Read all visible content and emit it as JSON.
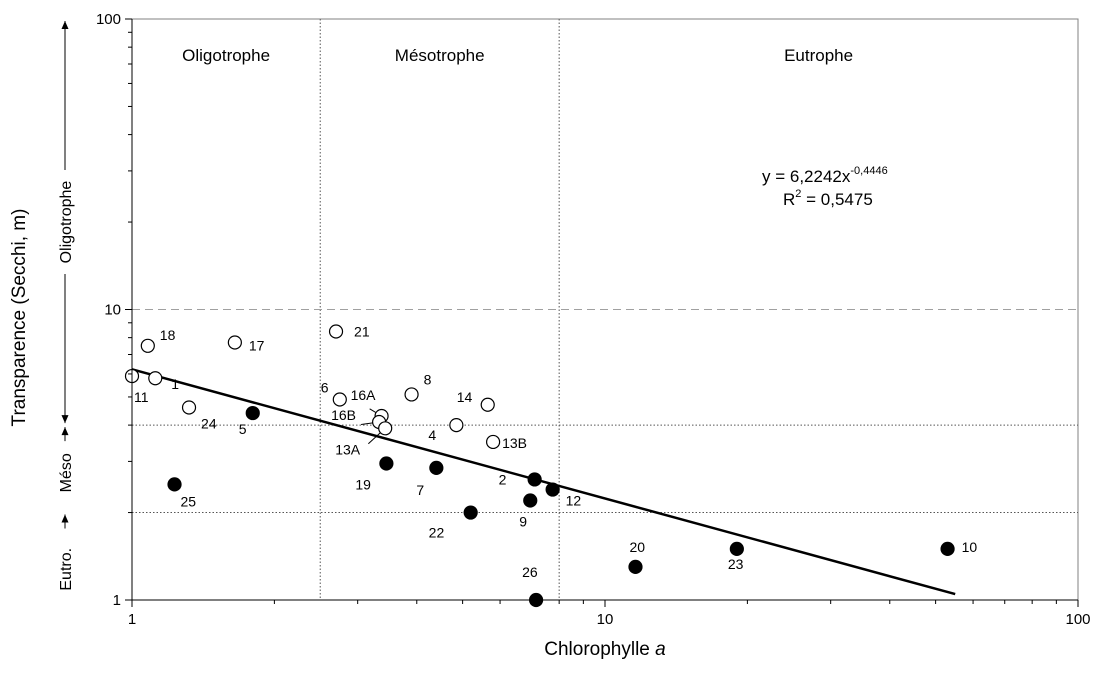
{
  "chart_data": {
    "type": "scatter",
    "x_scale": "log",
    "y_scale": "log",
    "xlim": [
      1,
      100
    ],
    "ylim": [
      1,
      100
    ],
    "xlabel": "Chlorophylle",
    "xlabel_italic": "a",
    "ylabel": "Transparence (Secchi, m)",
    "x_ticks": [
      "1",
      "10",
      "100"
    ],
    "y_ticks": [
      "1",
      "10",
      "100"
    ],
    "grid": false,
    "zones_x": [
      {
        "label": "Oligotrophe",
        "from": 1,
        "to": 2.5
      },
      {
        "label": "Mésotrophe",
        "from": 2.5,
        "to": 8
      },
      {
        "label": "Eutrophe",
        "from": 8,
        "to": 100
      }
    ],
    "zones_y": [
      {
        "label": "Oligotrophe",
        "from": 4,
        "to": 100
      },
      {
        "label": "Méso",
        "from": 2,
        "to": 4
      },
      {
        "label": "Eutro.",
        "from": 1,
        "to": 2
      }
    ],
    "threshold_x": [
      2.5,
      8
    ],
    "threshold_y": [
      2,
      4
    ],
    "reference_y": 10,
    "trendline": {
      "equation_prefix": "y = 6,2242x",
      "equation_exponent": "-0,4446",
      "r2_prefix": "R",
      "r2_power": "2",
      "r2_value": " = 0,5475",
      "a": 6.2242,
      "b": -0.4446,
      "x_range": [
        1,
        55
      ]
    },
    "points": [
      {
        "label": "18",
        "x": 1.08,
        "y": 7.5,
        "filled": false
      },
      {
        "label": "1",
        "x": 1.12,
        "y": 5.8,
        "filled": false
      },
      {
        "label": "11",
        "x": 1.0,
        "y": 5.9,
        "filled": false
      },
      {
        "label": "17",
        "x": 1.65,
        "y": 7.7,
        "filled": false
      },
      {
        "label": "24",
        "x": 1.32,
        "y": 4.6,
        "filled": false
      },
      {
        "label": "5",
        "x": 1.8,
        "y": 4.4,
        "filled": true
      },
      {
        "label": "25",
        "x": 1.23,
        "y": 2.5,
        "filled": true
      },
      {
        "label": "21",
        "x": 2.7,
        "y": 8.4,
        "filled": false
      },
      {
        "label": "6",
        "x": 2.75,
        "y": 4.9,
        "filled": false
      },
      {
        "label": "8",
        "x": 3.9,
        "y": 5.1,
        "filled": false
      },
      {
        "label": "16A",
        "x": 3.37,
        "y": 4.3,
        "filled": false
      },
      {
        "label": "16B",
        "x": 3.33,
        "y": 4.1,
        "filled": false
      },
      {
        "label": "13A",
        "x": 3.43,
        "y": 3.9,
        "filled": false
      },
      {
        "label": "4",
        "x": 4.85,
        "y": 4.0,
        "filled": false
      },
      {
        "label": "14",
        "x": 5.65,
        "y": 4.7,
        "filled": false
      },
      {
        "label": "13B",
        "x": 5.8,
        "y": 3.5,
        "filled": false
      },
      {
        "label": "19",
        "x": 3.45,
        "y": 2.95,
        "filled": true
      },
      {
        "label": "7",
        "x": 4.4,
        "y": 2.85,
        "filled": true
      },
      {
        "label": "2",
        "x": 7.1,
        "y": 2.6,
        "filled": true
      },
      {
        "label": "12",
        "x": 7.75,
        "y": 2.4,
        "filled": true
      },
      {
        "label": "9",
        "x": 6.95,
        "y": 2.2,
        "filled": true
      },
      {
        "label": "22",
        "x": 5.2,
        "y": 2.0,
        "filled": true
      },
      {
        "label": "20",
        "x": 11.6,
        "y": 1.3,
        "filled": true
      },
      {
        "label": "23",
        "x": 19.0,
        "y": 1.5,
        "filled": true
      },
      {
        "label": "10",
        "x": 53.0,
        "y": 1.5,
        "filled": true
      },
      {
        "label": "26",
        "x": 7.15,
        "y": 1.0,
        "filled": true
      }
    ]
  }
}
